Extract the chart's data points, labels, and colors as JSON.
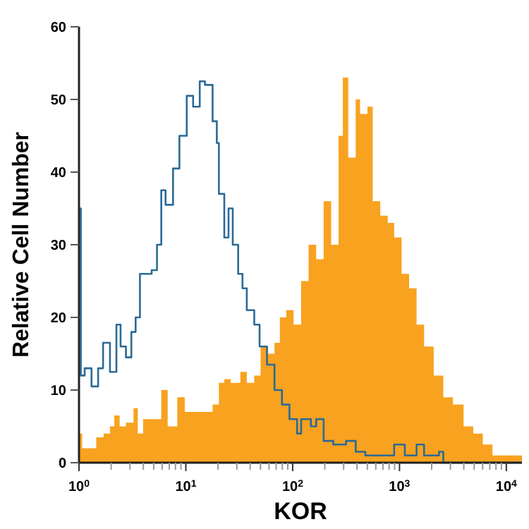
{
  "chart_data": {
    "type": "step",
    "xlabel": "KOR",
    "ylabel": "Relative Cell Number",
    "log": "x",
    "grid": false,
    "xlim": [
      1,
      14000
    ],
    "ylim": [
      0,
      60
    ],
    "yticks": [
      0,
      10,
      20,
      30,
      40,
      50,
      60
    ],
    "xticks": [
      {
        "value": 1,
        "label": "10$^{0}$"
      },
      {
        "value": 2,
        "label": null
      },
      {
        "value": 3,
        "label": null
      },
      {
        "value": 4,
        "label": null
      },
      {
        "value": 5,
        "label": null
      },
      {
        "value": 6,
        "label": null
      },
      {
        "value": 7,
        "label": null
      },
      {
        "value": 8,
        "label": null
      },
      {
        "value": 9,
        "label": null
      },
      {
        "value": 10,
        "label": "10$^{1}$"
      },
      {
        "value": 20,
        "label": null
      },
      {
        "value": 30,
        "label": null
      },
      {
        "value": 40,
        "label": null
      },
      {
        "value": 50,
        "label": null
      },
      {
        "value": 60,
        "label": null
      },
      {
        "value": 70,
        "label": null
      },
      {
        "value": 80,
        "label": null
      },
      {
        "value": 90,
        "label": null
      },
      {
        "value": 100,
        "label": "10$^{2}$"
      },
      {
        "value": 200,
        "label": null
      },
      {
        "value": 300,
        "label": null
      },
      {
        "value": 400,
        "label": null
      },
      {
        "value": 500,
        "label": null
      },
      {
        "value": 600,
        "label": null
      },
      {
        "value": 700,
        "label": null
      },
      {
        "value": 800,
        "label": null
      },
      {
        "value": 900,
        "label": null
      },
      {
        "value": 1000,
        "label": "10$^{3}$"
      },
      {
        "value": 2000,
        "label": null
      },
      {
        "value": 3000,
        "label": null
      },
      {
        "value": 4000,
        "label": null
      },
      {
        "value": 5000,
        "label": null
      },
      {
        "value": 6000,
        "label": null
      },
      {
        "value": 7000,
        "label": null
      },
      {
        "value": 8000,
        "label": null
      },
      {
        "value": 9000,
        "label": null
      },
      {
        "value": 10000,
        "label": "10$^{4}$"
      }
    ],
    "series": [
      {
        "type": "area",
        "color": "#f8a21f",
        "x": [
          1,
          1.07,
          1.32,
          1.45,
          1.7,
          1.95,
          2.14,
          2.4,
          2.75,
          3.24,
          3.55,
          3.98,
          4.57,
          5.37,
          5.89,
          6.76,
          8.32,
          9.77,
          11.7,
          14.5,
          17.8,
          20.4,
          22.9,
          26.3,
          32.4,
          37.2,
          43.7,
          50.1,
          58.9,
          67.6,
          75.9,
          87.1,
          102,
          120,
          141,
          166,
          195,
          229,
          269,
          295,
          331,
          389,
          427,
          501,
          562,
          661,
          776,
          891,
          1047,
          1230,
          1445,
          1698,
          2089,
          2570,
          3162,
          3981,
          4898,
          6026,
          7413,
          9120,
          12589,
          14000
        ],
        "values": [
          4,
          2,
          2,
          3.5,
          4,
          5,
          6.5,
          5,
          5.5,
          7.5,
          4,
          6,
          6,
          6,
          10,
          5,
          9,
          7,
          7,
          7,
          8,
          11,
          11.5,
          11,
          12.5,
          11,
          12,
          16,
          15,
          16.5,
          20,
          21,
          19,
          25,
          30,
          28,
          36,
          30,
          45,
          53,
          42,
          50,
          48,
          49,
          36,
          34,
          33,
          31,
          26,
          24,
          19,
          16,
          12,
          9,
          8,
          5,
          4,
          2.5,
          1,
          1,
          1,
          1
        ]
      },
      {
        "color": "#2a6a96",
        "x": [
          1,
          1.04,
          1.13,
          1.31,
          1.51,
          1.68,
          1.95,
          2.24,
          2.45,
          2.75,
          3.09,
          3.39,
          3.72,
          4.79,
          5.37,
          5.89,
          6.46,
          7.59,
          8.71,
          10.2,
          11.7,
          13.5,
          15.1,
          17.8,
          19.5,
          20.4,
          22.9,
          25.1,
          27.5,
          30.9,
          33.9,
          37.2,
          43.7,
          49,
          57.5,
          67.6,
          79.4,
          93.3,
          110,
          120,
          148,
          166,
          195,
          240,
          316,
          389,
          479,
          724,
          891,
          1122,
          1445,
          1698,
          2344,
          2570,
          14000
        ],
        "values": [
          35,
          12,
          13,
          10.5,
          13,
          16.5,
          12.5,
          19,
          16,
          14.5,
          18,
          20,
          26,
          26.5,
          30,
          37.5,
          35.5,
          40.5,
          45,
          50.5,
          49,
          52.5,
          52,
          47,
          44,
          37,
          31,
          35,
          30,
          26,
          24,
          21,
          19,
          16,
          13.5,
          10,
          8,
          6,
          4,
          6,
          5,
          6,
          3,
          2.5,
          3,
          1.5,
          1,
          1,
          2.5,
          1,
          2.5,
          1,
          1.5,
          0,
          0
        ]
      }
    ]
  }
}
